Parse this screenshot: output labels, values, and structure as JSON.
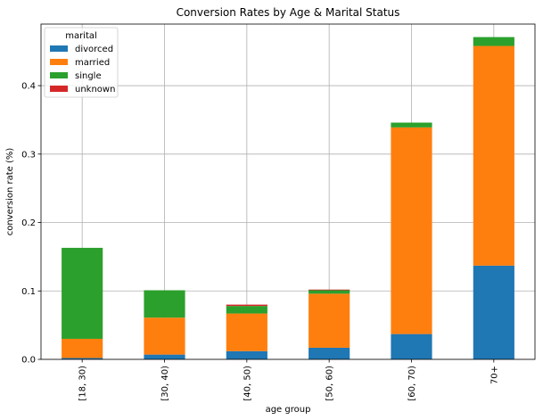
{
  "chart_data": {
    "type": "bar",
    "stacked": true,
    "title": "Conversion Rates by Age & Marital Status",
    "xlabel": "age group",
    "ylabel": "conversion rate (%)",
    "categories": [
      "[18, 30)",
      "[30, 40)",
      "[40, 50)",
      "[50, 60)",
      "[60, 70)",
      "70+"
    ],
    "ylim": [
      0,
      0.49
    ],
    "yticks": [
      "0.0",
      "0.1",
      "0.2",
      "0.3",
      "0.4"
    ],
    "grid": true,
    "legend": {
      "title": "marital",
      "placement": "top-left"
    },
    "series": [
      {
        "name": "divorced",
        "color": "#1f77b4",
        "values": [
          0.002,
          0.007,
          0.012,
          0.017,
          0.037,
          0.137
        ]
      },
      {
        "name": "married",
        "color": "#ff7f0e",
        "values": [
          0.028,
          0.054,
          0.055,
          0.079,
          0.302,
          0.321
        ]
      },
      {
        "name": "single",
        "color": "#2ca02c",
        "values": [
          0.133,
          0.04,
          0.011,
          0.005,
          0.007,
          0.013
        ]
      },
      {
        "name": "unknown",
        "color": "#d62728",
        "values": [
          0.0,
          0.0,
          0.002,
          0.001,
          0.0,
          0.0
        ]
      }
    ]
  }
}
